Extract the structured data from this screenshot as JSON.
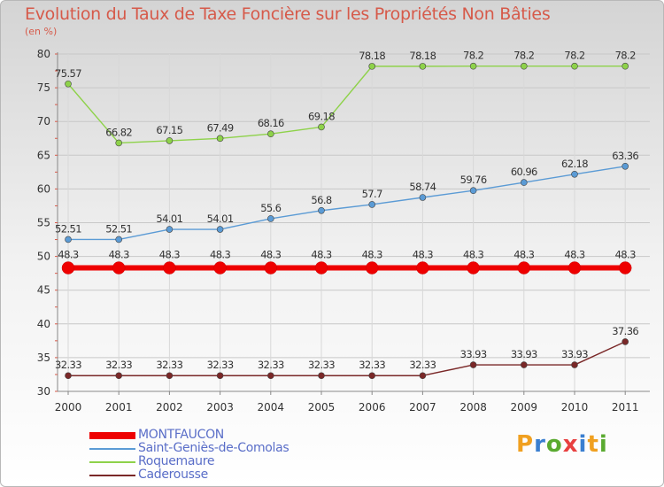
{
  "title": "Evolution du Taux de Taxe Foncière sur les Propriétés Non Bâties",
  "subtitle": "(en %)",
  "logo_text": "Proxiti",
  "colors": {
    "title": "#d65a4a",
    "legend_text": "#5a6ec8",
    "MONTFAUCON": "#ee0000",
    "Saint-Geniès-de-Comolas": "#5b9bd5",
    "Roquemaure": "#8ed24a",
    "Caderousse": "#7a2828"
  },
  "chart_data": {
    "type": "line",
    "title": "Evolution du Taux de Taxe Foncière sur les Propriétés Non Bâties",
    "ylabel": "(en %)",
    "xlabel": "",
    "categories": [
      "2000",
      "2001",
      "2002",
      "2003",
      "2004",
      "2005",
      "2006",
      "2007",
      "2008",
      "2009",
      "2010",
      "2011"
    ],
    "ylim": [
      30,
      80
    ],
    "yticks": [
      30,
      35,
      40,
      45,
      50,
      55,
      60,
      65,
      70,
      75,
      80
    ],
    "grid": true,
    "legend_position": "bottom-left",
    "series": [
      {
        "name": "MONTFAUCON",
        "color": "#ee0000",
        "values": [
          48.3,
          48.3,
          48.3,
          48.3,
          48.3,
          48.3,
          48.3,
          48.3,
          48.3,
          48.3,
          48.3,
          48.3
        ],
        "labels": [
          "48.3",
          "48.3",
          "48.3",
          "48.3",
          "48.3",
          "48.3",
          "48.3",
          "48.3",
          "48.3",
          "48.3",
          "48.3",
          "48.3"
        ]
      },
      {
        "name": "Saint-Geniès-de-Comolas",
        "color": "#5b9bd5",
        "values": [
          52.51,
          52.51,
          54.01,
          54.01,
          55.6,
          56.8,
          57.7,
          58.74,
          59.76,
          60.96,
          62.18,
          63.36
        ],
        "labels": [
          "52.51",
          "52.51",
          "54.01",
          "54.01",
          "55.6",
          "56.8",
          "57.7",
          "58.74",
          "59.76",
          "60.96",
          "62.18",
          "63.36"
        ]
      },
      {
        "name": "Roquemaure",
        "color": "#8ed24a",
        "values": [
          75.57,
          66.82,
          67.15,
          67.49,
          68.16,
          69.18,
          78.18,
          78.18,
          78.2,
          78.2,
          78.2,
          78.2
        ],
        "labels": [
          "75.57",
          "66.82",
          "67.15",
          "67.49",
          "68.16",
          "69.18",
          "78.18",
          "78.18",
          "78.2",
          "78.2",
          "78.2",
          "78.2"
        ]
      },
      {
        "name": "Caderousse",
        "color": "#7a2828",
        "values": [
          32.33,
          32.33,
          32.33,
          32.33,
          32.33,
          32.33,
          32.33,
          32.33,
          33.93,
          33.93,
          33.93,
          37.36
        ],
        "labels": [
          "32.33",
          "32.33",
          "32.33",
          "32.33",
          "32.33",
          "32.33",
          "32.33",
          "32.33",
          "33.93",
          "33.93",
          "33.93",
          "37.36"
        ]
      }
    ]
  }
}
